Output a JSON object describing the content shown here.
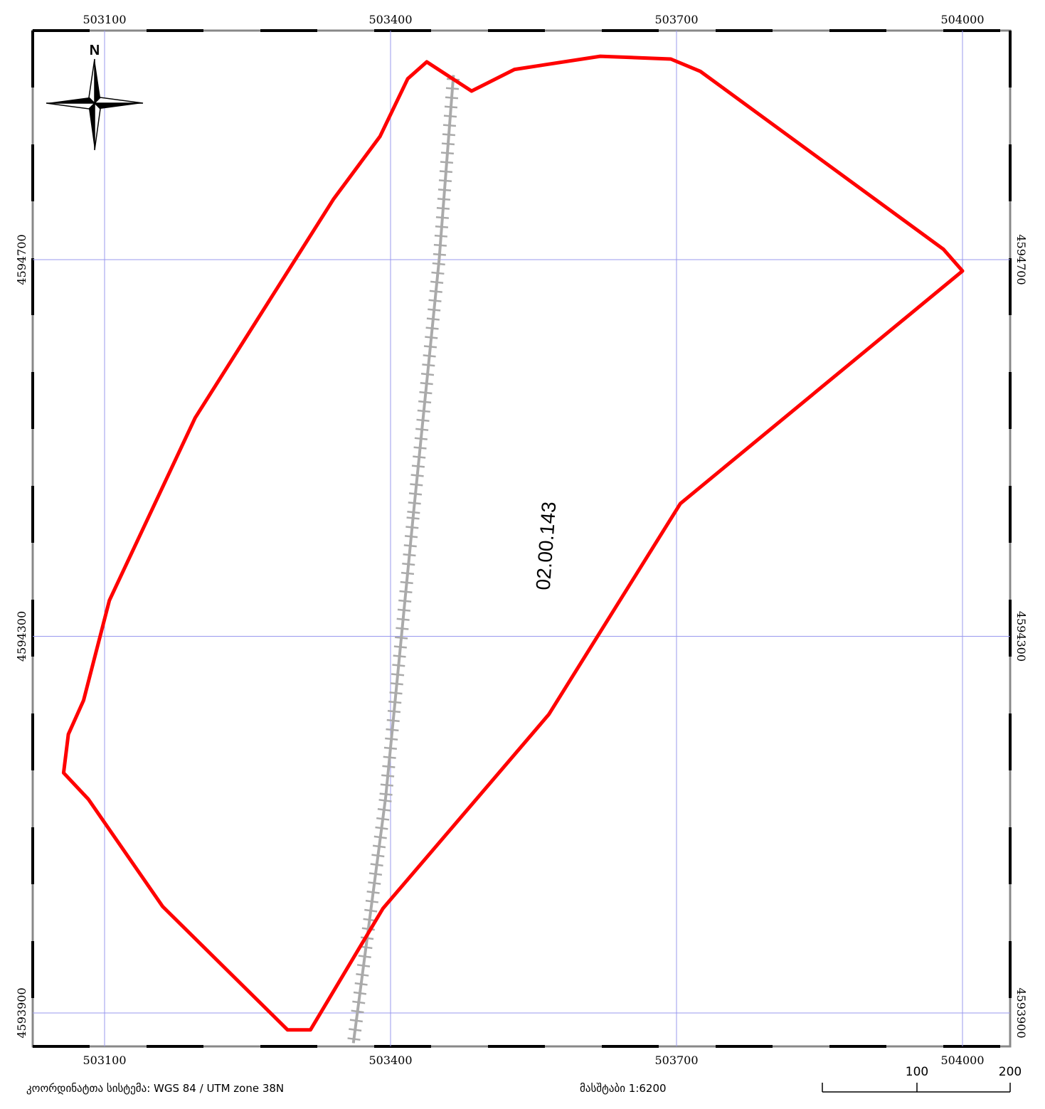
{
  "map": {
    "x_ticks": [
      "503100",
      "503400",
      "503700",
      "504000"
    ],
    "y_ticks": [
      "4594700",
      "4594300",
      "4593900"
    ],
    "road_label": "02.00.143",
    "north_label": "N",
    "colors": {
      "boundary": "#ff0000",
      "grid": "#9999ee",
      "road": "#aaaaaa",
      "frame": "#000000"
    },
    "x_range": [
      503025,
      504050
    ],
    "y_range": [
      4593866,
      4594940
    ],
    "boundary": [
      [
        503438,
        4594910
      ],
      [
        503418,
        4594892
      ],
      [
        503389,
        4594831
      ],
      [
        503340,
        4594764
      ],
      [
        503195,
        4594532
      ],
      [
        503105,
        4594338
      ],
      [
        503078,
        4594232
      ],
      [
        503062,
        4594196
      ],
      [
        503057,
        4594155
      ],
      [
        503083,
        4594127
      ],
      [
        503161,
        4594013
      ],
      [
        503292,
        4593882
      ],
      [
        503316,
        4593882
      ],
      [
        503392,
        4594011
      ],
      [
        503566,
        4594217
      ],
      [
        503704,
        4594441
      ],
      [
        504000,
        4594688
      ],
      [
        503980,
        4594711
      ],
      [
        503725,
        4594900
      ],
      [
        503694,
        4594913
      ],
      [
        503620,
        4594916
      ],
      [
        503530,
        4594902
      ],
      [
        503485,
        4594879
      ]
    ],
    "road": [
      [
        503466,
        4594896
      ],
      [
        503451,
        4594700
      ],
      [
        503424,
        4594430
      ],
      [
        503395,
        4594130
      ],
      [
        503361,
        4593868
      ]
    ]
  },
  "footer": {
    "crs_label": "კოორდინატთა სისტემა: WGS 84 / UTM zone 38N",
    "scale_label": "მასშტაბი 1:6200"
  },
  "scalebar": {
    "labels": [
      "100",
      "200"
    ]
  }
}
